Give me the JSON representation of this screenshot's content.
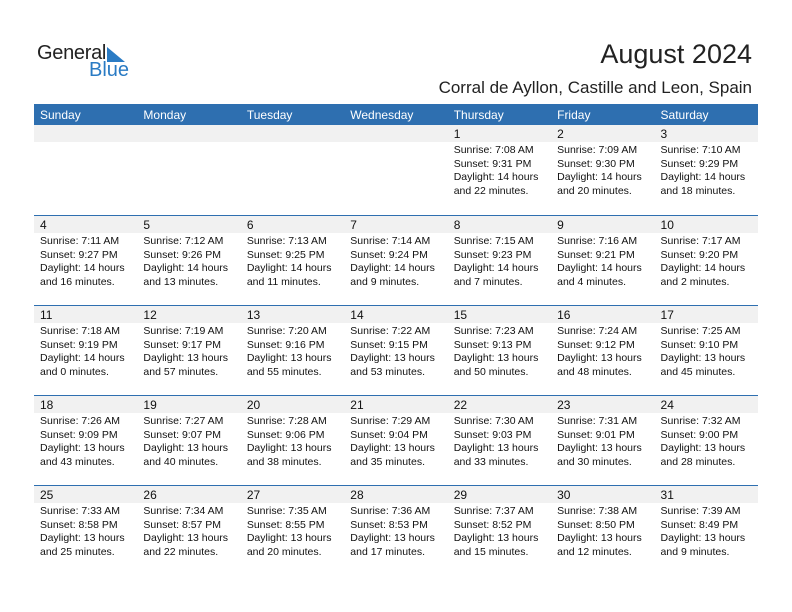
{
  "logo": {
    "text1": "General",
    "text2": "Blue"
  },
  "title": "August 2024",
  "subtitle": "Corral de Ayllon, Castille and Leon, Spain",
  "colors": {
    "header": "#2e6fb0",
    "band": "#f1f1f1",
    "logo_blue": "#2a7bc4"
  },
  "weekdays": [
    "Sunday",
    "Monday",
    "Tuesday",
    "Wednesday",
    "Thursday",
    "Friday",
    "Saturday"
  ],
  "weeks": [
    [
      {
        "d": "",
        "t": ""
      },
      {
        "d": "",
        "t": ""
      },
      {
        "d": "",
        "t": ""
      },
      {
        "d": "",
        "t": ""
      },
      {
        "d": "1",
        "t": "Sunrise: 7:08 AM\nSunset: 9:31 PM\nDaylight: 14 hours\nand 22 minutes."
      },
      {
        "d": "2",
        "t": "Sunrise: 7:09 AM\nSunset: 9:30 PM\nDaylight: 14 hours\nand 20 minutes."
      },
      {
        "d": "3",
        "t": "Sunrise: 7:10 AM\nSunset: 9:29 PM\nDaylight: 14 hours\nand 18 minutes."
      }
    ],
    [
      {
        "d": "4",
        "t": "Sunrise: 7:11 AM\nSunset: 9:27 PM\nDaylight: 14 hours\nand 16 minutes."
      },
      {
        "d": "5",
        "t": "Sunrise: 7:12 AM\nSunset: 9:26 PM\nDaylight: 14 hours\nand 13 minutes."
      },
      {
        "d": "6",
        "t": "Sunrise: 7:13 AM\nSunset: 9:25 PM\nDaylight: 14 hours\nand 11 minutes."
      },
      {
        "d": "7",
        "t": "Sunrise: 7:14 AM\nSunset: 9:24 PM\nDaylight: 14 hours\nand 9 minutes."
      },
      {
        "d": "8",
        "t": "Sunrise: 7:15 AM\nSunset: 9:23 PM\nDaylight: 14 hours\nand 7 minutes."
      },
      {
        "d": "9",
        "t": "Sunrise: 7:16 AM\nSunset: 9:21 PM\nDaylight: 14 hours\nand 4 minutes."
      },
      {
        "d": "10",
        "t": "Sunrise: 7:17 AM\nSunset: 9:20 PM\nDaylight: 14 hours\nand 2 minutes."
      }
    ],
    [
      {
        "d": "11",
        "t": "Sunrise: 7:18 AM\nSunset: 9:19 PM\nDaylight: 14 hours\nand 0 minutes."
      },
      {
        "d": "12",
        "t": "Sunrise: 7:19 AM\nSunset: 9:17 PM\nDaylight: 13 hours\nand 57 minutes."
      },
      {
        "d": "13",
        "t": "Sunrise: 7:20 AM\nSunset: 9:16 PM\nDaylight: 13 hours\nand 55 minutes."
      },
      {
        "d": "14",
        "t": "Sunrise: 7:22 AM\nSunset: 9:15 PM\nDaylight: 13 hours\nand 53 minutes."
      },
      {
        "d": "15",
        "t": "Sunrise: 7:23 AM\nSunset: 9:13 PM\nDaylight: 13 hours\nand 50 minutes."
      },
      {
        "d": "16",
        "t": "Sunrise: 7:24 AM\nSunset: 9:12 PM\nDaylight: 13 hours\nand 48 minutes."
      },
      {
        "d": "17",
        "t": "Sunrise: 7:25 AM\nSunset: 9:10 PM\nDaylight: 13 hours\nand 45 minutes."
      }
    ],
    [
      {
        "d": "18",
        "t": "Sunrise: 7:26 AM\nSunset: 9:09 PM\nDaylight: 13 hours\nand 43 minutes."
      },
      {
        "d": "19",
        "t": "Sunrise: 7:27 AM\nSunset: 9:07 PM\nDaylight: 13 hours\nand 40 minutes."
      },
      {
        "d": "20",
        "t": "Sunrise: 7:28 AM\nSunset: 9:06 PM\nDaylight: 13 hours\nand 38 minutes."
      },
      {
        "d": "21",
        "t": "Sunrise: 7:29 AM\nSunset: 9:04 PM\nDaylight: 13 hours\nand 35 minutes."
      },
      {
        "d": "22",
        "t": "Sunrise: 7:30 AM\nSunset: 9:03 PM\nDaylight: 13 hours\nand 33 minutes."
      },
      {
        "d": "23",
        "t": "Sunrise: 7:31 AM\nSunset: 9:01 PM\nDaylight: 13 hours\nand 30 minutes."
      },
      {
        "d": "24",
        "t": "Sunrise: 7:32 AM\nSunset: 9:00 PM\nDaylight: 13 hours\nand 28 minutes."
      }
    ],
    [
      {
        "d": "25",
        "t": "Sunrise: 7:33 AM\nSunset: 8:58 PM\nDaylight: 13 hours\nand 25 minutes."
      },
      {
        "d": "26",
        "t": "Sunrise: 7:34 AM\nSunset: 8:57 PM\nDaylight: 13 hours\nand 22 minutes."
      },
      {
        "d": "27",
        "t": "Sunrise: 7:35 AM\nSunset: 8:55 PM\nDaylight: 13 hours\nand 20 minutes."
      },
      {
        "d": "28",
        "t": "Sunrise: 7:36 AM\nSunset: 8:53 PM\nDaylight: 13 hours\nand 17 minutes."
      },
      {
        "d": "29",
        "t": "Sunrise: 7:37 AM\nSunset: 8:52 PM\nDaylight: 13 hours\nand 15 minutes."
      },
      {
        "d": "30",
        "t": "Sunrise: 7:38 AM\nSunset: 8:50 PM\nDaylight: 13 hours\nand 12 minutes."
      },
      {
        "d": "31",
        "t": "Sunrise: 7:39 AM\nSunset: 8:49 PM\nDaylight: 13 hours\nand 9 minutes."
      }
    ]
  ]
}
